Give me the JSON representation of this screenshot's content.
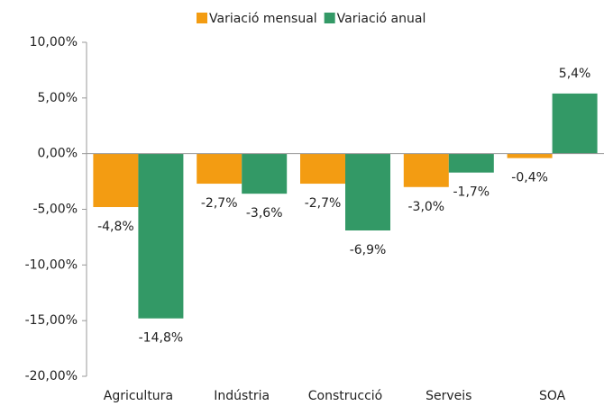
{
  "chart_data": {
    "type": "bar",
    "categories": [
      "Agricultura",
      "Indústria",
      "Construcció",
      "Serveis",
      "SOA"
    ],
    "series": [
      {
        "name": "Variació mensual",
        "color": "#f39c12",
        "values": [
          -4.8,
          -2.7,
          -2.7,
          -3.0,
          -0.4
        ],
        "value_labels": [
          "-4,8%",
          "-2,7%",
          "-2,7%",
          "-3,0%",
          "-0,4%"
        ]
      },
      {
        "name": "Variació anual",
        "color": "#339966",
        "values": [
          -14.8,
          -3.6,
          -6.9,
          -1.7,
          5.4
        ],
        "value_labels": [
          "-14,8%",
          "-3,6%",
          "-6,9%",
          "-1,7%",
          "5,4%"
        ]
      }
    ],
    "ylim": [
      -20,
      10
    ],
    "yticks": [
      {
        "value": -20,
        "label": "-20,00%"
      },
      {
        "value": -15,
        "label": "-15,00%"
      },
      {
        "value": -10,
        "label": "-10,00%"
      },
      {
        "value": -5,
        "label": "-5,00%"
      },
      {
        "value": 0,
        "label": "0,00%"
      },
      {
        "value": 5,
        "label": "5,00%"
      },
      {
        "value": 10,
        "label": "10,00%"
      }
    ],
    "legend": "top",
    "grid": false
  }
}
